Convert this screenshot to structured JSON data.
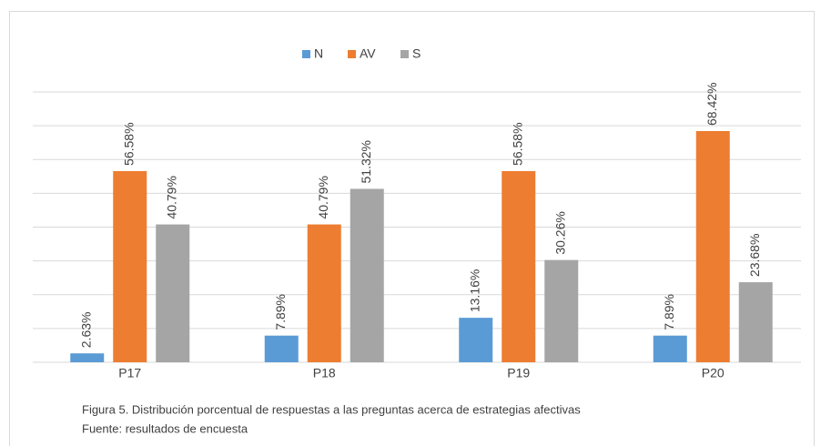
{
  "chart_data": {
    "type": "bar",
    "categories": [
      "P17",
      "P18",
      "P19",
      "P20"
    ],
    "series": [
      {
        "name": "N",
        "color": "#5b9bd5",
        "values": [
          2.63,
          7.89,
          13.16,
          7.89
        ],
        "value_labels": [
          "2.63%",
          "7.89%",
          "13.16%",
          "7.89%"
        ]
      },
      {
        "name": "AV",
        "color": "#ed7d31",
        "values": [
          56.58,
          40.79,
          56.58,
          68.42
        ],
        "value_labels": [
          "56.58%",
          "40.79%",
          "56.58%",
          "68.42%"
        ]
      },
      {
        "name": "S",
        "color": "#a5a5a5",
        "values": [
          40.79,
          51.32,
          30.26,
          23.68
        ],
        "value_labels": [
          "40.79%",
          "51.32%",
          "30.26%",
          "23.68%"
        ]
      }
    ],
    "ylim": [
      0,
      80
    ],
    "yticks": [
      0,
      10,
      20,
      30,
      40,
      50,
      60,
      70,
      80
    ],
    "grid": true,
    "legend": "top",
    "caption": "Figura 5.  Distribución porcentual de respuestas a las preguntas acerca de estrategias afectivas",
    "source": "Fuente: resultados de encuesta"
  }
}
